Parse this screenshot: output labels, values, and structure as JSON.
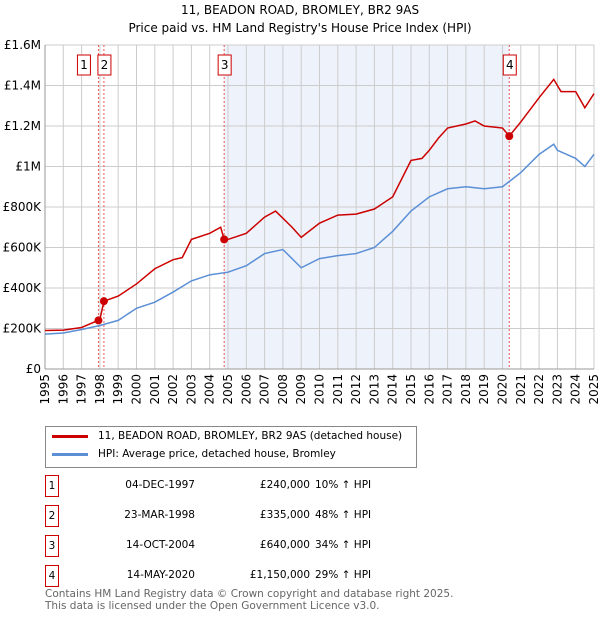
{
  "chart_data": {
    "type": "line",
    "title": "11, BEADON ROAD, BROMLEY, BR2 9AS",
    "subtitle": "Price paid vs. HM Land Registry's House Price Index (HPI)",
    "xlim": [
      1995,
      2025
    ],
    "ylim": [
      0,
      1600000
    ],
    "x_ticks": [
      "1995",
      "1996",
      "1997",
      "1998",
      "1999",
      "2000",
      "2001",
      "2002",
      "2003",
      "2004",
      "2005",
      "2006",
      "2007",
      "2008",
      "2009",
      "2010",
      "2011",
      "2012",
      "2013",
      "2014",
      "2015",
      "2016",
      "2017",
      "2018",
      "2019",
      "2020",
      "2021",
      "2022",
      "2023",
      "2024",
      "2025"
    ],
    "y_ticks": [
      {
        "v": 0,
        "label": "£0"
      },
      {
        "v": 200000,
        "label": "£200K"
      },
      {
        "v": 400000,
        "label": "£400K"
      },
      {
        "v": 600000,
        "label": "£600K"
      },
      {
        "v": 800000,
        "label": "£800K"
      },
      {
        "v": 1000000,
        "label": "£1M"
      },
      {
        "v": 1200000,
        "label": "£1.2M"
      },
      {
        "v": 1400000,
        "label": "£1.4M"
      },
      {
        "v": 1600000,
        "label": "£1.6M"
      }
    ],
    "grid": true,
    "shaded_range": [
      2004.79,
      2020.37
    ],
    "series": [
      {
        "name": "11, BEADON ROAD, BROMLEY, BR2 9AS (detached house)",
        "color": "#cc0000",
        "points": [
          [
            1995,
            190000
          ],
          [
            1996,
            192000
          ],
          [
            1997,
            205000
          ],
          [
            1997.9,
            240000
          ],
          [
            1998.0,
            245000
          ],
          [
            1998.22,
            335000
          ],
          [
            1999,
            360000
          ],
          [
            2000,
            420000
          ],
          [
            2001,
            495000
          ],
          [
            2002,
            540000
          ],
          [
            2002.5,
            550000
          ],
          [
            2003,
            640000
          ],
          [
            2004,
            670000
          ],
          [
            2004.6,
            700000
          ],
          [
            2004.79,
            640000
          ],
          [
            2005,
            640000
          ],
          [
            2006,
            670000
          ],
          [
            2007,
            750000
          ],
          [
            2007.6,
            780000
          ],
          [
            2008.5,
            700000
          ],
          [
            2009,
            650000
          ],
          [
            2010,
            720000
          ],
          [
            2011,
            760000
          ],
          [
            2012,
            765000
          ],
          [
            2013,
            790000
          ],
          [
            2014,
            850000
          ],
          [
            2015,
            1030000
          ],
          [
            2015.6,
            1040000
          ],
          [
            2016,
            1080000
          ],
          [
            2016.5,
            1140000
          ],
          [
            2017,
            1190000
          ],
          [
            2018,
            1210000
          ],
          [
            2018.5,
            1225000
          ],
          [
            2019,
            1200000
          ],
          [
            2020,
            1190000
          ],
          [
            2020.37,
            1150000
          ],
          [
            2021,
            1220000
          ],
          [
            2022,
            1340000
          ],
          [
            2022.8,
            1430000
          ],
          [
            2023.2,
            1370000
          ],
          [
            2024,
            1370000
          ],
          [
            2024.5,
            1290000
          ],
          [
            2025,
            1360000
          ]
        ]
      },
      {
        "name": "HPI: Average price, detached house, Bromley",
        "color": "#5b8fd6",
        "points": [
          [
            1995,
            172000
          ],
          [
            1996,
            178000
          ],
          [
            1997,
            195000
          ],
          [
            1998,
            215000
          ],
          [
            1999,
            240000
          ],
          [
            2000,
            300000
          ],
          [
            2001,
            330000
          ],
          [
            2002,
            380000
          ],
          [
            2003,
            435000
          ],
          [
            2004,
            465000
          ],
          [
            2005,
            478000
          ],
          [
            2006,
            510000
          ],
          [
            2007,
            570000
          ],
          [
            2008,
            590000
          ],
          [
            2009,
            500000
          ],
          [
            2010,
            545000
          ],
          [
            2011,
            560000
          ],
          [
            2012,
            570000
          ],
          [
            2013,
            600000
          ],
          [
            2014,
            680000
          ],
          [
            2015,
            780000
          ],
          [
            2016,
            850000
          ],
          [
            2017,
            890000
          ],
          [
            2018,
            900000
          ],
          [
            2019,
            890000
          ],
          [
            2020,
            900000
          ],
          [
            2021,
            970000
          ],
          [
            2022,
            1060000
          ],
          [
            2022.8,
            1110000
          ],
          [
            2023,
            1080000
          ],
          [
            2024,
            1040000
          ],
          [
            2024.5,
            1000000
          ],
          [
            2025,
            1060000
          ]
        ]
      }
    ],
    "sales": [
      {
        "n": "1",
        "x": 1997.92,
        "price": 240000,
        "date": "04-DEC-1997",
        "price_label": "£240,000",
        "hpi": "10% ↑ HPI"
      },
      {
        "n": "2",
        "x": 1998.22,
        "price": 335000,
        "date": "23-MAR-1998",
        "price_label": "£335,000",
        "hpi": "48% ↑ HPI"
      },
      {
        "n": "3",
        "x": 2004.79,
        "price": 640000,
        "date": "14-OCT-2004",
        "price_label": "£640,000",
        "hpi": "34% ↑ HPI"
      },
      {
        "n": "4",
        "x": 2020.37,
        "price": 1150000,
        "date": "14-MAY-2020",
        "price_label": "£1,150,000",
        "hpi": "29% ↑ HPI"
      }
    ],
    "legend": {
      "placement": "bottom",
      "entries": [
        "11, BEADON ROAD, BROMLEY, BR2 9AS (detached house)",
        "HPI: Average price, detached house, Bromley"
      ]
    }
  },
  "footer": [
    "Contains HM Land Registry data © Crown copyright and database right 2025.",
    "This data is licensed under the Open Government Licence v3.0."
  ]
}
